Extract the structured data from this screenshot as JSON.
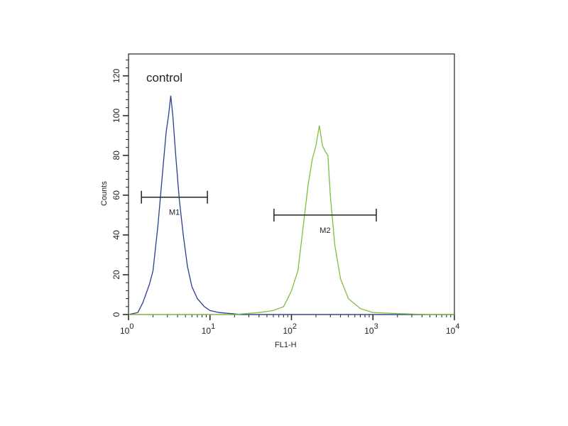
{
  "chart_data": {
    "type": "line",
    "title": "",
    "annotation": "control",
    "xlabel": "FL1-H",
    "ylabel": "Counts",
    "xscale": "log",
    "xlim": [
      1,
      10000
    ],
    "ylim": [
      0,
      131
    ],
    "xticks": [
      {
        "base": "10",
        "exp": "0"
      },
      {
        "base": "10",
        "exp": "1"
      },
      {
        "base": "10",
        "exp": "2"
      },
      {
        "base": "10",
        "exp": "3"
      },
      {
        "base": "10",
        "exp": "4"
      }
    ],
    "yticks": [
      "0",
      "20",
      "40",
      "60",
      "80",
      "100",
      "120"
    ],
    "grid": false,
    "series": [
      {
        "color": "#2b3f8c",
        "points": [
          [
            1.0,
            0
          ],
          [
            1.3,
            1
          ],
          [
            1.5,
            6
          ],
          [
            1.8,
            15
          ],
          [
            2.0,
            22
          ],
          [
            2.3,
            45
          ],
          [
            2.6,
            70
          ],
          [
            2.9,
            92
          ],
          [
            3.1,
            100
          ],
          [
            3.3,
            110
          ],
          [
            3.5,
            100
          ],
          [
            3.8,
            80
          ],
          [
            4.2,
            58
          ],
          [
            4.7,
            40
          ],
          [
            5.3,
            24
          ],
          [
            6,
            14
          ],
          [
            7,
            8
          ],
          [
            8.5,
            4
          ],
          [
            10,
            2
          ],
          [
            13,
            1
          ],
          [
            18,
            0.5
          ],
          [
            25,
            0
          ],
          [
            10000,
            0
          ]
        ]
      },
      {
        "color": "#7fbf3f",
        "points": [
          [
            1,
            0
          ],
          [
            20,
            0
          ],
          [
            40,
            1
          ],
          [
            60,
            2
          ],
          [
            80,
            4
          ],
          [
            90,
            8
          ],
          [
            100,
            12
          ],
          [
            120,
            22
          ],
          [
            140,
            45
          ],
          [
            160,
            65
          ],
          [
            180,
            78
          ],
          [
            200,
            85
          ],
          [
            220,
            95
          ],
          [
            240,
            85
          ],
          [
            260,
            82
          ],
          [
            280,
            80
          ],
          [
            300,
            60
          ],
          [
            340,
            35
          ],
          [
            400,
            18
          ],
          [
            500,
            8
          ],
          [
            700,
            3
          ],
          [
            1000,
            1
          ],
          [
            2000,
            0.5
          ],
          [
            5000,
            0
          ],
          [
            10000,
            0
          ]
        ]
      }
    ],
    "markers": [
      {
        "label": "M1",
        "x_range": [
          1.44,
          9.3
        ],
        "y": 59
      },
      {
        "label": "M2",
        "x_range": [
          61,
          1100
        ],
        "y": 50
      }
    ]
  }
}
